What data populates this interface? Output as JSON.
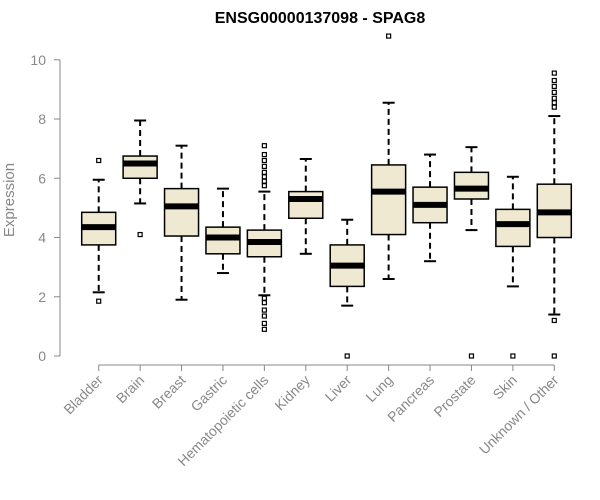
{
  "chart_data": {
    "type": "boxplot",
    "title": "ENSG00000137098 - SPAG8",
    "xlabel": "",
    "ylabel": "Expression",
    "ylim": [
      0,
      10.6
    ],
    "yticks": [
      0,
      2,
      4,
      6,
      8,
      10
    ],
    "box_fill": "#f0e9d2",
    "box_stroke": "#000000",
    "axis_color": "#888888",
    "categories": [
      "Bladder",
      "Brain",
      "Breast",
      "Gastric",
      "Hematopoietic cells",
      "Kidney",
      "Liver",
      "Lung",
      "Pancreas",
      "Prostate",
      "Skin",
      "Unknown / Other"
    ],
    "boxes": [
      {
        "min": 2.15,
        "q1": 3.75,
        "median": 4.35,
        "q3": 4.85,
        "max": 5.95,
        "outliers": [
          6.6,
          1.85
        ]
      },
      {
        "min": 5.15,
        "q1": 6.0,
        "median": 6.5,
        "q3": 6.75,
        "max": 7.95,
        "outliers": [
          4.1
        ]
      },
      {
        "min": 1.9,
        "q1": 4.05,
        "median": 5.05,
        "q3": 5.65,
        "max": 7.1,
        "outliers": []
      },
      {
        "min": 2.8,
        "q1": 3.45,
        "median": 4.0,
        "q3": 4.35,
        "max": 5.65,
        "outliers": []
      },
      {
        "min": 2.05,
        "q1": 3.35,
        "median": 3.85,
        "q3": 4.25,
        "max": 5.55,
        "outliers": [
          5.75,
          5.9,
          6.05,
          6.2,
          6.4,
          6.6,
          6.8,
          7.1,
          1.95,
          1.8,
          1.55,
          1.35,
          1.1,
          0.9
        ]
      },
      {
        "min": 3.45,
        "q1": 4.65,
        "median": 5.3,
        "q3": 5.55,
        "max": 6.65,
        "outliers": []
      },
      {
        "min": 1.7,
        "q1": 2.35,
        "median": 3.05,
        "q3": 3.75,
        "max": 4.6,
        "outliers": [
          0
        ]
      },
      {
        "min": 2.6,
        "q1": 4.1,
        "median": 5.55,
        "q3": 6.45,
        "max": 8.55,
        "outliers": [
          10.8
        ]
      },
      {
        "min": 3.2,
        "q1": 4.5,
        "median": 5.1,
        "q3": 5.7,
        "max": 6.8,
        "outliers": []
      },
      {
        "min": 4.25,
        "q1": 5.3,
        "median": 5.65,
        "q3": 6.2,
        "max": 7.05,
        "outliers": [
          0
        ]
      },
      {
        "min": 2.35,
        "q1": 3.7,
        "median": 4.45,
        "q3": 4.95,
        "max": 6.05,
        "outliers": [
          0
        ]
      },
      {
        "min": 1.4,
        "q1": 4.0,
        "median": 4.85,
        "q3": 5.8,
        "max": 8.1,
        "outliers": [
          8.4,
          8.55,
          8.7,
          8.9,
          9.1,
          9.3,
          9.55,
          1.2,
          0
        ]
      }
    ]
  }
}
